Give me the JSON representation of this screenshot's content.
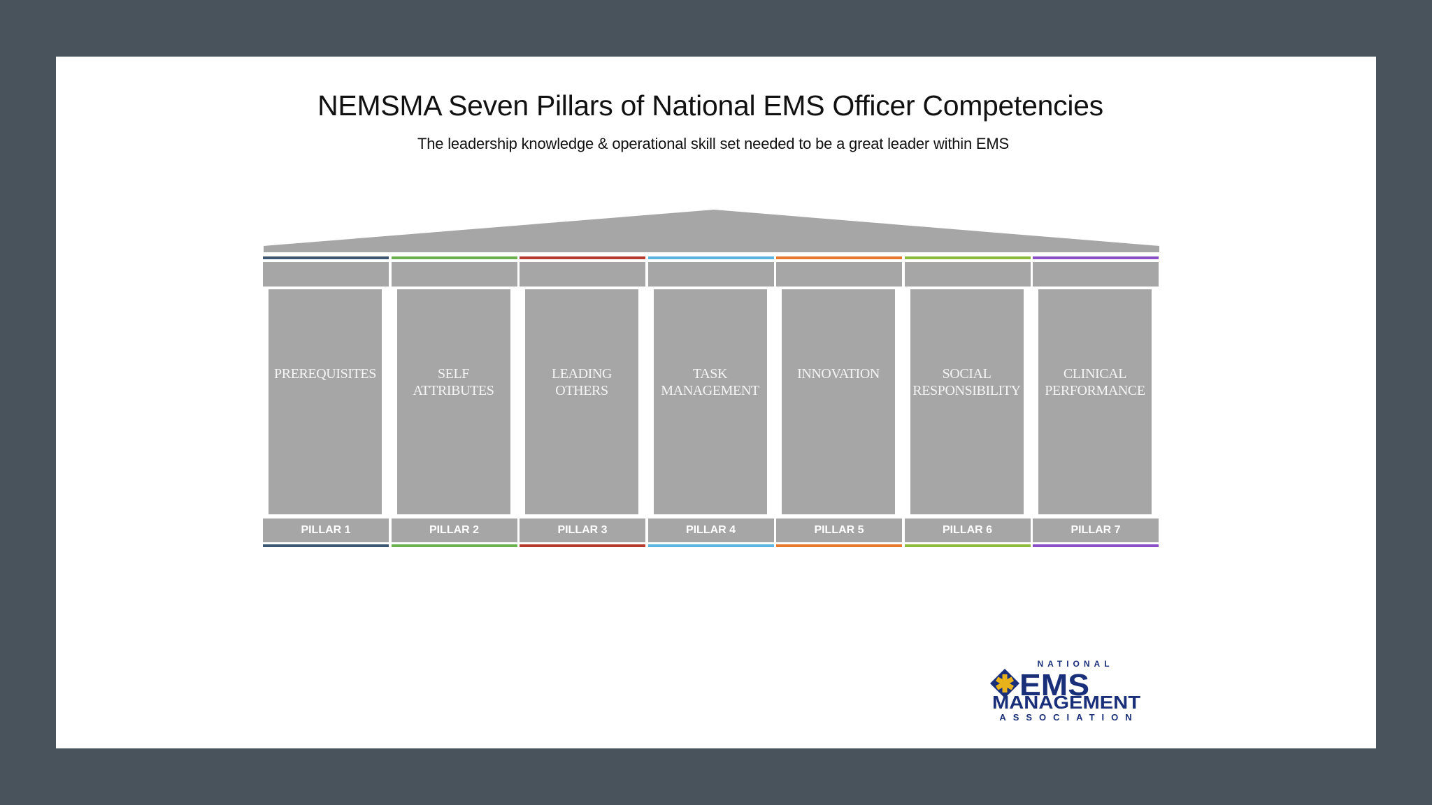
{
  "title": "NEMSMA Seven Pillars of National EMS Officer Competencies",
  "subtitle": "The leadership knowledge & operational skill set needed to be a great leader within EMS",
  "colors": {
    "background": "#48535b",
    "slide": "#ffffff",
    "pillar_gray": "#a6a6a6",
    "logo_navy": "#1a2f7a",
    "logo_gold": "#e8b21a"
  },
  "pillars": [
    {
      "name": "PREREQUISITES",
      "label": "PILLAR 1",
      "color": "#3c5570"
    },
    {
      "name": "SELF\nATTRIBUTES",
      "label": "PILLAR 2",
      "color": "#6ab04c"
    },
    {
      "name": "LEADING\nOTHERS",
      "label": "PILLAR 3",
      "color": "#b63a2e"
    },
    {
      "name": "TASK\nMANAGEMENT",
      "label": "PILLAR 4",
      "color": "#59b4e0"
    },
    {
      "name": "INNOVATION",
      "label": "PILLAR 5",
      "color": "#e8762c"
    },
    {
      "name": "SOCIAL\nRESPONSIBILITY",
      "label": "PILLAR 6",
      "color": "#8dbb3c"
    },
    {
      "name": "CLINICAL\nPERFORMANCE",
      "label": "PILLAR 7",
      "color": "#8a4fc6"
    }
  ],
  "logo": {
    "top_text": "NATIONAL",
    "main_text": "EMS",
    "second_text": "MANAGEMENT",
    "bottom_text": "ASSOCIATION",
    "icon": "star-of-life-icon"
  }
}
